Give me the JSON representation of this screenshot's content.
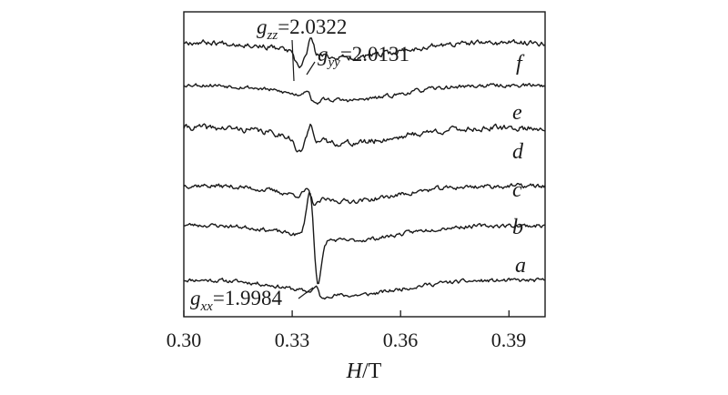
{
  "chart_data": {
    "type": "line",
    "description_of_axes": "",
    "x": {
      "label_italic": "H",
      "label_rest": "/T",
      "range": [
        0.3,
        0.4
      ],
      "ticks": [
        0.3,
        0.33,
        0.36,
        0.39
      ],
      "tick_labels": [
        "0.30",
        "0.33",
        "0.36",
        "0.39"
      ]
    },
    "y": {
      "label": "",
      "ticks_shown": false
    },
    "grid": false,
    "series": [
      {
        "name": "a",
        "baseline": 0.12,
        "resonance": "g_xx",
        "noise": 0.012,
        "seed": 11
      },
      {
        "name": "b",
        "baseline": 0.3,
        "resonance": "strong",
        "noise": 0.012,
        "seed": 23
      },
      {
        "name": "c",
        "baseline": 0.43,
        "resonance": "g_yy",
        "noise": 0.014,
        "seed": 37
      },
      {
        "name": "d",
        "baseline": 0.62,
        "resonance": "g_zz",
        "noise": 0.018,
        "seed": 41
      },
      {
        "name": "e",
        "baseline": 0.76,
        "resonance": "g_yy",
        "noise": 0.012,
        "seed": 53
      },
      {
        "name": "f",
        "baseline": 0.9,
        "resonance": "g_zz",
        "noise": 0.016,
        "seed": 67
      }
    ],
    "annotations": {
      "gzz": {
        "symbol": "g",
        "sub": "zz",
        "value": "=2.0322",
        "field": 0.3318
      },
      "gyy": {
        "symbol": "g",
        "sub": "yy",
        "value": "=2.0131",
        "field": 0.3352
      },
      "gxx": {
        "symbol": "g",
        "sub": "xx",
        "value": "=1.9984",
        "field": 0.3375
      }
    }
  }
}
